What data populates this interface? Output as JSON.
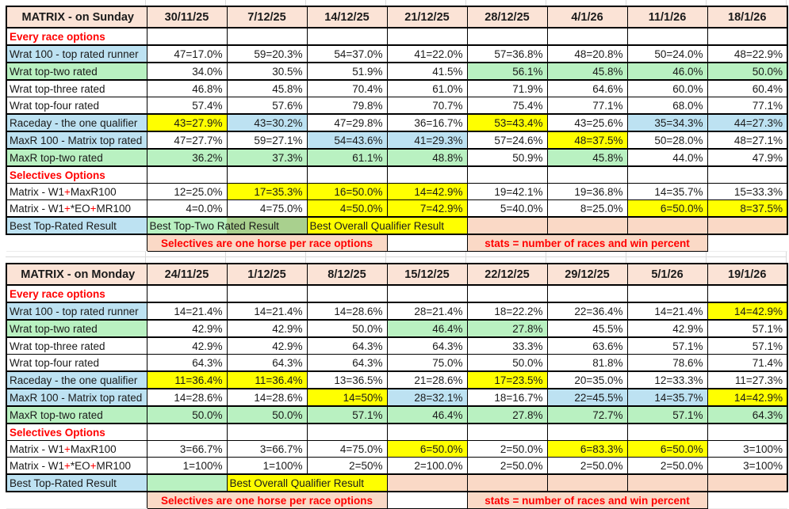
{
  "colors": {
    "header_fill": "#FBE3D6",
    "note_fill": "#FAD9C6",
    "blue": "#BDE2F2",
    "green": "#B9F1C1",
    "dark_green": "#A9D08E",
    "yellow": "#FFFF00",
    "red": "#FF0000",
    "grid_gray": "#D9D9D9"
  },
  "notes": {
    "selectives": "Selectives are one horse per race options",
    "stats": "stats = number of races and win percent"
  },
  "tables": [
    {
      "id": "sunday",
      "title": "MATRIX - on Sunday",
      "dates": [
        "30/11/25",
        "7/12/25",
        "14/12/25",
        "21/12/25",
        "28/12/25",
        "4/1/26",
        "11/1/26",
        "18/1/26"
      ],
      "rows": [
        {
          "section": true,
          "label": "Every race options"
        },
        {
          "label": "Wrat 100 - top rated runner",
          "lbg": "blue",
          "heavy": true,
          "cells": [
            {
              "v": "47=17.0%",
              "bg": "w"
            },
            {
              "v": "59=20.3%",
              "bg": "w"
            },
            {
              "v": "54=37.0%",
              "bg": "w"
            },
            {
              "v": "41=22.0%",
              "bg": "w"
            },
            {
              "v": "57=36.8%",
              "bg": "w"
            },
            {
              "v": "48=20.8%",
              "bg": "w"
            },
            {
              "v": "50=24.0%",
              "bg": "w"
            },
            {
              "v": "48=22.9%",
              "bg": "w"
            }
          ]
        },
        {
          "label": "Wrat top-two rated",
          "lbg": "green",
          "heavy": true,
          "cells": [
            {
              "v": "34.0%",
              "bg": "w"
            },
            {
              "v": "30.5%",
              "bg": "w"
            },
            {
              "v": "51.9%",
              "bg": "w"
            },
            {
              "v": "41.5%",
              "bg": "w"
            },
            {
              "v": "56.1%",
              "bg": "g"
            },
            {
              "v": "45.8%",
              "bg": "g"
            },
            {
              "v": "46.0%",
              "bg": "g"
            },
            {
              "v": "50.0%",
              "bg": "g"
            }
          ]
        },
        {
          "label": "Wrat top-three rated",
          "lbg": "white",
          "cells": [
            {
              "v": "46.8%",
              "bg": "w"
            },
            {
              "v": "45.8%",
              "bg": "w"
            },
            {
              "v": "70.4%",
              "bg": "w"
            },
            {
              "v": "61.0%",
              "bg": "w"
            },
            {
              "v": "71.9%",
              "bg": "w"
            },
            {
              "v": "64.6%",
              "bg": "w"
            },
            {
              "v": "60.0%",
              "bg": "w"
            },
            {
              "v": "60.4%",
              "bg": "w"
            }
          ]
        },
        {
          "label": "Wrat top-four rated",
          "lbg": "white",
          "cells": [
            {
              "v": "57.4%",
              "bg": "w"
            },
            {
              "v": "57.6%",
              "bg": "w"
            },
            {
              "v": "79.8%",
              "bg": "w"
            },
            {
              "v": "70.7%",
              "bg": "w"
            },
            {
              "v": "75.4%",
              "bg": "w"
            },
            {
              "v": "77.1%",
              "bg": "w"
            },
            {
              "v": "68.0%",
              "bg": "w"
            },
            {
              "v": "77.1%",
              "bg": "w"
            }
          ]
        },
        {
          "label": "Raceday - the one qualifier",
          "lbg": "blue",
          "heavy": true,
          "cells": [
            {
              "v": "43=27.9%",
              "bg": "y"
            },
            {
              "v": "43=30.2%",
              "bg": "b"
            },
            {
              "v": "47=29.8%",
              "bg": "w"
            },
            {
              "v": "36=16.7%",
              "bg": "w"
            },
            {
              "v": "53=43.4%",
              "bg": "y"
            },
            {
              "v": "43=25.6%",
              "bg": "w"
            },
            {
              "v": "35=34.3%",
              "bg": "b"
            },
            {
              "v": "44=27.3%",
              "bg": "b"
            }
          ]
        },
        {
          "label": "MaxR 100 - Matrix top rated",
          "lbg": "blue",
          "heavy": true,
          "cells": [
            {
              "v": "47=27.7%",
              "bg": "w"
            },
            {
              "v": "59=27.1%",
              "bg": "w"
            },
            {
              "v": "54=43.6%",
              "bg": "b"
            },
            {
              "v": "41=29.3%",
              "bg": "b"
            },
            {
              "v": "57=24.6%",
              "bg": "w"
            },
            {
              "v": "48=37.5%",
              "bg": "y"
            },
            {
              "v": "50=28.0%",
              "bg": "w"
            },
            {
              "v": "48=27.1%",
              "bg": "w"
            }
          ]
        },
        {
          "label": "MaxR top-two rated",
          "lbg": "green",
          "heavy": true,
          "cells": [
            {
              "v": "36.2%",
              "bg": "g"
            },
            {
              "v": "37.3%",
              "bg": "g"
            },
            {
              "v": "61.1%",
              "bg": "g"
            },
            {
              "v": "48.8%",
              "bg": "g"
            },
            {
              "v": "50.9%",
              "bg": "w"
            },
            {
              "v": "45.8%",
              "bg": "g"
            },
            {
              "v": "44.0%",
              "bg": "w"
            },
            {
              "v": "47.9%",
              "bg": "w"
            }
          ]
        },
        {
          "section": true,
          "label": "Selectives Options"
        },
        {
          "label": "Matrix - W1+MaxR100",
          "plus_red": true,
          "lbg": "white",
          "cells": [
            {
              "v": "12=25.0%",
              "bg": "w"
            },
            {
              "v": "17=35.3%",
              "bg": "y"
            },
            {
              "v": "16=50.0%",
              "bg": "y"
            },
            {
              "v": "14=42.9%",
              "bg": "y"
            },
            {
              "v": "19=42.1%",
              "bg": "w"
            },
            {
              "v": "19=36.8%",
              "bg": "w"
            },
            {
              "v": "14=35.7%",
              "bg": "w"
            },
            {
              "v": "15=33.3%",
              "bg": "w"
            }
          ]
        },
        {
          "label": "Matrix - W1+*EO+MR100",
          "plus_red": true,
          "lbg": "white",
          "cells": [
            {
              "v": "4=0.0%",
              "bg": "w"
            },
            {
              "v": "4=75.0%",
              "bg": "w"
            },
            {
              "v": "4=50.0%",
              "bg": "y"
            },
            {
              "v": "7=42.9%",
              "bg": "y"
            },
            {
              "v": "5=40.0%",
              "bg": "w"
            },
            {
              "v": "8=25.0%",
              "bg": "w"
            },
            {
              "v": "6=50.0%",
              "bg": "y"
            },
            {
              "v": "8=37.5%",
              "bg": "y"
            }
          ]
        }
      ],
      "best_row": {
        "label": "Best Top-Rated Result",
        "cells": [
          {
            "text": "Best Top-Two Rated Result",
            "bg": "greensplit",
            "span": 2
          },
          {
            "text": "Best Overall Qualifier Result",
            "bg": "yellow",
            "span": 2
          },
          {
            "text": "",
            "bg": "salmon",
            "span": 1
          },
          {
            "text": "",
            "bg": "salmon",
            "span": 1
          },
          {
            "text": "",
            "bg": "salmon",
            "span": 1
          },
          {
            "text": "",
            "bg": "salmon",
            "span": 1
          }
        ]
      }
    },
    {
      "id": "monday",
      "title": "MATRIX - on Monday",
      "dates": [
        "24/11/25",
        "1/12/25",
        "8/12/25",
        "15/12/25",
        "22/12/25",
        "29/12/25",
        "5/1/26",
        "19/1/26"
      ],
      "rows": [
        {
          "section": true,
          "label": "Every race options"
        },
        {
          "label": "Wrat 100 - top rated runner",
          "lbg": "blue",
          "heavy": true,
          "cells": [
            {
              "v": "14=21.4%",
              "bg": "w"
            },
            {
              "v": "14=21.4%",
              "bg": "w"
            },
            {
              "v": "14=28.6%",
              "bg": "w"
            },
            {
              "v": "28=21.4%",
              "bg": "w"
            },
            {
              "v": "18=22.2%",
              "bg": "w"
            },
            {
              "v": "22=36.4%",
              "bg": "w"
            },
            {
              "v": "14=21.4%",
              "bg": "w"
            },
            {
              "v": "14=42.9%",
              "bg": "y"
            }
          ]
        },
        {
          "label": "Wrat top-two rated",
          "lbg": "green",
          "heavy": true,
          "cells": [
            {
              "v": "42.9%",
              "bg": "w"
            },
            {
              "v": "42.9%",
              "bg": "w"
            },
            {
              "v": "50.0%",
              "bg": "w"
            },
            {
              "v": "46.4%",
              "bg": "g"
            },
            {
              "v": "27.8%",
              "bg": "g"
            },
            {
              "v": "45.5%",
              "bg": "w"
            },
            {
              "v": "42.9%",
              "bg": "w"
            },
            {
              "v": "57.1%",
              "bg": "w"
            }
          ]
        },
        {
          "label": "Wrat top-three rated",
          "lbg": "white",
          "cells": [
            {
              "v": "42.9%",
              "bg": "w"
            },
            {
              "v": "42.9%",
              "bg": "w"
            },
            {
              "v": "64.3%",
              "bg": "w"
            },
            {
              "v": "64.3%",
              "bg": "w"
            },
            {
              "v": "33.3%",
              "bg": "w"
            },
            {
              "v": "63.6%",
              "bg": "w"
            },
            {
              "v": "57.1%",
              "bg": "w"
            },
            {
              "v": "57.1%",
              "bg": "w"
            }
          ]
        },
        {
          "label": "Wrat top-four rated",
          "lbg": "white",
          "cells": [
            {
              "v": "64.3%",
              "bg": "w"
            },
            {
              "v": "64.3%",
              "bg": "w"
            },
            {
              "v": "64.3%",
              "bg": "w"
            },
            {
              "v": "75.0%",
              "bg": "w"
            },
            {
              "v": "50.0%",
              "bg": "w"
            },
            {
              "v": "81.8%",
              "bg": "w"
            },
            {
              "v": "78.6%",
              "bg": "w"
            },
            {
              "v": "71.4%",
              "bg": "w"
            }
          ]
        },
        {
          "label": "Raceday - the one qualifier",
          "lbg": "blue",
          "heavy": true,
          "cells": [
            {
              "v": "11=36.4%",
              "bg": "y"
            },
            {
              "v": "11=36.4%",
              "bg": "y"
            },
            {
              "v": "13=36.5%",
              "bg": "w"
            },
            {
              "v": "21=28.6%",
              "bg": "w"
            },
            {
              "v": "17=23.5%",
              "bg": "y"
            },
            {
              "v": "20=35.0%",
              "bg": "w"
            },
            {
              "v": "12=33.3%",
              "bg": "w"
            },
            {
              "v": "11=27.3%",
              "bg": "w"
            }
          ]
        },
        {
          "label": "MaxR 100 - Matrix top rated",
          "lbg": "blue",
          "heavy": true,
          "cells": [
            {
              "v": "14=28.6%",
              "bg": "w"
            },
            {
              "v": "14=28.6%",
              "bg": "w"
            },
            {
              "v": "14=50%",
              "bg": "y"
            },
            {
              "v": "28=32.1%",
              "bg": "b"
            },
            {
              "v": "18=16.7%",
              "bg": "w"
            },
            {
              "v": "22=45.5%",
              "bg": "b"
            },
            {
              "v": "14=35.7%",
              "bg": "b"
            },
            {
              "v": "14=42.9%",
              "bg": "y"
            }
          ]
        },
        {
          "label": "MaxR top-two rated",
          "lbg": "green",
          "heavy": true,
          "cells": [
            {
              "v": "50.0%",
              "bg": "g"
            },
            {
              "v": "50.0%",
              "bg": "g"
            },
            {
              "v": "57.1%",
              "bg": "g"
            },
            {
              "v": "46.4%",
              "bg": "g"
            },
            {
              "v": "27.8%",
              "bg": "g"
            },
            {
              "v": "72.7%",
              "bg": "g"
            },
            {
              "v": "57.1%",
              "bg": "g"
            },
            {
              "v": "64.3%",
              "bg": "g"
            }
          ]
        },
        {
          "section": true,
          "label": "Selectives Options"
        },
        {
          "label": "Matrix - W1+MaxR100",
          "plus_red": true,
          "lbg": "white",
          "cells": [
            {
              "v": "3=66.7%",
              "bg": "w"
            },
            {
              "v": "3=66.7%",
              "bg": "w"
            },
            {
              "v": "4=75.0%",
              "bg": "w"
            },
            {
              "v": "6=50.0%",
              "bg": "y"
            },
            {
              "v": "2=50.0%",
              "bg": "w"
            },
            {
              "v": "6=83.3%",
              "bg": "y"
            },
            {
              "v": "6=50.0%",
              "bg": "y"
            },
            {
              "v": "3=100%",
              "bg": "w"
            }
          ]
        },
        {
          "label": "Matrix - W1+*EO+MR100",
          "plus_red": true,
          "lbg": "white",
          "cells": [
            {
              "v": "1=100%",
              "bg": "w"
            },
            {
              "v": "1=100%",
              "bg": "w"
            },
            {
              "v": "2=50%",
              "bg": "w"
            },
            {
              "v": "2=100.0%",
              "bg": "w"
            },
            {
              "v": "2=50.0%",
              "bg": "w"
            },
            {
              "v": "2=50.0%",
              "bg": "w"
            },
            {
              "v": "2=50.0%",
              "bg": "w"
            },
            {
              "v": "3=100%",
              "bg": "w"
            }
          ]
        }
      ],
      "best_row": {
        "label": "Best Top-Rated Result",
        "cells": [
          {
            "text": "",
            "bg": "green",
            "span": 1
          },
          {
            "text": "Best Overall Qualifier Result",
            "bg": "yellow",
            "span": 2
          },
          {
            "text": "",
            "bg": "salmon",
            "span": 1
          },
          {
            "text": "",
            "bg": "salmon",
            "span": 1
          },
          {
            "text": "",
            "bg": "salmon",
            "span": 1
          },
          {
            "text": "",
            "bg": "salmon",
            "span": 1
          },
          {
            "text": "",
            "bg": "salmon",
            "span": 1
          }
        ]
      }
    }
  ]
}
